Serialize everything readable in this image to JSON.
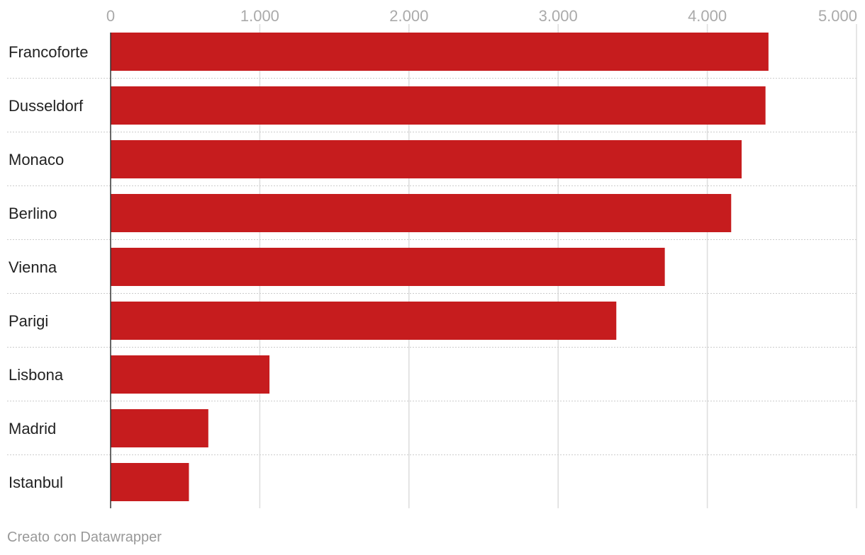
{
  "chart_data": {
    "type": "bar",
    "orientation": "horizontal",
    "categories": [
      "Francoforte",
      "Dusseldorf",
      "Monaco",
      "Berlino",
      "Vienna",
      "Parigi",
      "Lisbona",
      "Madrid",
      "Istanbul"
    ],
    "values": [
      4410,
      4390,
      4230,
      4160,
      3715,
      3390,
      1065,
      655,
      525
    ],
    "xlim": [
      0,
      5000
    ],
    "xticks": [
      0,
      1000,
      2000,
      3000,
      4000,
      5000
    ],
    "xtick_labels": [
      "0",
      "1.000",
      "2.000",
      "3.000",
      "4.000",
      "5.000"
    ],
    "title": "",
    "xlabel": "",
    "ylabel": "",
    "grid": true,
    "bar_color": "#c61c1e"
  },
  "footer": {
    "credit": "Creato con Datawrapper"
  }
}
